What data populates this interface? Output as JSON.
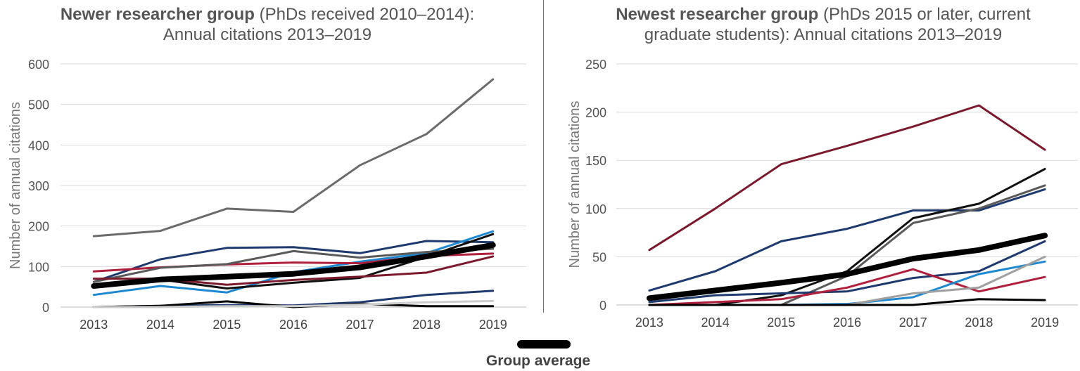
{
  "left_panel": {
    "title_bold": "Newer researcher group",
    "title_rest": " (PhDs received 2010–2014):",
    "title_line2": "Annual citations 2013–2019"
  },
  "right_panel": {
    "title_bold": "Newest researcher group",
    "title_rest": " (PhDs 2015 or later, current",
    "title_line2": "graduate students):  Annual citations 2013–2019"
  },
  "legend": {
    "label": "Group average",
    "color": "#000000"
  },
  "chart_data": [
    {
      "type": "line",
      "title": "Newer researcher group (PhDs received 2010–2014): Annual citations 2013–2019",
      "xlabel": "",
      "ylabel": "Number of annual citations",
      "x": [
        "2013",
        "2014",
        "2015",
        "2016",
        "2017",
        "2018",
        "2019"
      ],
      "ylim": [
        0,
        600
      ],
      "yticks": [
        "0",
        "100",
        "200",
        "300",
        "400",
        "500",
        "600"
      ],
      "grid": true,
      "series": [
        {
          "color": "#6b6b6b",
          "values": [
            175,
            188,
            243,
            235,
            350,
            427,
            562
          ]
        },
        {
          "color": "#1f3a6e",
          "values": [
            62,
            118,
            146,
            148,
            133,
            163,
            160
          ]
        },
        {
          "color": "#1e88d0",
          "values": [
            30,
            52,
            36,
            86,
            112,
            133,
            187
          ]
        },
        {
          "color": "#b0203c",
          "values": [
            88,
            98,
            105,
            110,
            108,
            126,
            132
          ]
        },
        {
          "color": "#5a5a5a",
          "values": [
            62,
            97,
            106,
            138,
            122,
            136,
            144
          ]
        },
        {
          "color": "#111111",
          "values": [
            50,
            68,
            46,
            60,
            72,
            124,
            180
          ]
        },
        {
          "color": "#7a1a2c",
          "values": [
            70,
            70,
            55,
            67,
            75,
            85,
            125
          ]
        },
        {
          "color": "#1f3a6e",
          "values": [
            0,
            3,
            5,
            4,
            12,
            30,
            40
          ]
        },
        {
          "color": "#000000",
          "values": [
            0,
            3,
            14,
            0,
            8,
            2,
            2
          ]
        },
        {
          "color": "#cccccc",
          "values": [
            0,
            0,
            2,
            2,
            6,
            12,
            15
          ]
        },
        {
          "name": "Group average",
          "color": "#000000",
          "width": 8,
          "values": [
            52,
            68,
            75,
            82,
            98,
            125,
            153
          ]
        }
      ]
    },
    {
      "type": "line",
      "title": "Newest researcher group (PhDs 2015 or later, current graduate students): Annual citations 2013–2019",
      "xlabel": "",
      "ylabel": "Number of annual citations",
      "x": [
        "2013",
        "2014",
        "2015",
        "2016",
        "2017",
        "2018",
        "2019"
      ],
      "ylim": [
        0,
        250
      ],
      "yticks": [
        "0",
        "50",
        "100",
        "150",
        "200",
        "250"
      ],
      "grid": true,
      "series": [
        {
          "color": "#7a1a2c",
          "values": [
            57,
            100,
            146,
            165,
            185,
            207,
            161
          ]
        },
        {
          "color": "#1f3a6e",
          "values": [
            15,
            35,
            66,
            79,
            98,
            98,
            120
          ]
        },
        {
          "color": "#111111",
          "values": [
            0,
            0,
            10,
            35,
            90,
            105,
            141
          ]
        },
        {
          "color": "#5a5a5a",
          "values": [
            0,
            0,
            0,
            30,
            85,
            100,
            124
          ]
        },
        {
          "color": "#1f3a6e",
          "values": [
            3,
            10,
            12,
            14,
            28,
            35,
            66
          ]
        },
        {
          "color": "#b0203c",
          "values": [
            0,
            3,
            6,
            18,
            37,
            14,
            29
          ]
        },
        {
          "color": "#1e88d0",
          "values": [
            0,
            0,
            0,
            1,
            8,
            32,
            45
          ]
        },
        {
          "color": "#a0a0a0",
          "values": [
            0,
            0,
            0,
            0,
            12,
            18,
            50
          ]
        },
        {
          "color": "#000000",
          "values": [
            0,
            0,
            0,
            0,
            0,
            6,
            5
          ]
        },
        {
          "name": "Group average",
          "color": "#000000",
          "width": 8,
          "values": [
            7,
            15,
            23,
            32,
            48,
            57,
            72
          ]
        }
      ]
    }
  ]
}
